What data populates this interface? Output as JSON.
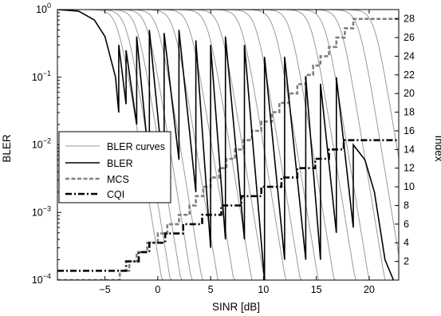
{
  "chart_data": {
    "type": "line",
    "xlabel": "SINR [dB]",
    "ylabel": "BLER",
    "y2label": "Index",
    "xlim": [
      -9.5,
      22.8
    ],
    "ylim": [
      0.0001,
      1
    ],
    "y2lim": [
      0,
      29
    ],
    "yscale": "log",
    "grid": false,
    "legend_position": "middle-left",
    "x_ticks": [
      -5,
      0,
      5,
      10,
      15,
      20
    ],
    "x_tick_labels": [
      "−5",
      "0",
      "5",
      "10",
      "15",
      "20"
    ],
    "y_ticks": [
      0.0001,
      0.001,
      0.01,
      0.1,
      1
    ],
    "y_tick_exponents": [
      "−4",
      "−3",
      "−2",
      "−1",
      "0"
    ],
    "y_tick_base": "10",
    "y2_ticks": [
      2,
      4,
      6,
      8,
      10,
      12,
      14,
      16,
      18,
      20,
      22,
      24,
      26,
      28
    ],
    "y2_tick_labels": [
      "2",
      "4",
      "6",
      "8",
      "10",
      "12",
      "14",
      "16",
      "18",
      "20",
      "22",
      "24",
      "26",
      "28"
    ],
    "legend": [
      {
        "label": "BLER curves",
        "style": "thin-gray",
        "color": "#9a9a9a"
      },
      {
        "label": "BLER",
        "style": "solid",
        "color": "#000000"
      },
      {
        "label": "MCS",
        "style": "dashed",
        "color": "#7f7f7f"
      },
      {
        "label": "CQI",
        "style": "dash-dot",
        "color": "#000000"
      }
    ],
    "bler_curve_midpoints": [
      -3.8,
      -3.0,
      -2.0,
      -1.0,
      0.0,
      1.5,
      3.0,
      4.7,
      5.9,
      7.9,
      9.3,
      11.0,
      12.5,
      14.5,
      15.8,
      17.3,
      19.0,
      20.5
    ],
    "bler_series": [
      {
        "x": -9.5,
        "y": 1.0
      },
      {
        "x": -7.5,
        "y": 0.95
      },
      {
        "x": -6.0,
        "y": 0.7
      },
      {
        "x": -5.0,
        "y": 0.4
      },
      {
        "x": -4.0,
        "y": 0.1
      },
      {
        "x": -3.7,
        "y": 0.03
      },
      {
        "x": -3.7,
        "y": 0.3
      },
      {
        "x": -3.0,
        "y": 0.04
      },
      {
        "x": -3.0,
        "y": 0.25
      },
      {
        "x": -2.0,
        "y": 0.02
      },
      {
        "x": -2.0,
        "y": 0.4
      },
      {
        "x": -0.8,
        "y": 0.005
      },
      {
        "x": -0.8,
        "y": 0.5
      },
      {
        "x": 0.6,
        "y": 0.003
      },
      {
        "x": 0.6,
        "y": 0.45
      },
      {
        "x": 2.0,
        "y": 0.006
      },
      {
        "x": 2.0,
        "y": 0.5
      },
      {
        "x": 3.6,
        "y": 0.002
      },
      {
        "x": 3.6,
        "y": 0.35
      },
      {
        "x": 5.0,
        "y": 0.0003
      },
      {
        "x": 5.0,
        "y": 0.3
      },
      {
        "x": 6.4,
        "y": 0.0004
      },
      {
        "x": 6.4,
        "y": 0.4
      },
      {
        "x": 8.2,
        "y": 0.0004
      },
      {
        "x": 8.2,
        "y": 0.3
      },
      {
        "x": 10.1,
        "y": 0.0001
      },
      {
        "x": 10.1,
        "y": 0.2
      },
      {
        "x": 12.0,
        "y": 0.0002
      },
      {
        "x": 12.0,
        "y": 0.2
      },
      {
        "x": 14.0,
        "y": 0.0002
      },
      {
        "x": 14.0,
        "y": 0.1
      },
      {
        "x": 15.4,
        "y": 0.0002
      },
      {
        "x": 15.4,
        "y": 0.08
      },
      {
        "x": 16.9,
        "y": 0.0005
      },
      {
        "x": 16.9,
        "y": 0.1
      },
      {
        "x": 18.5,
        "y": 0.0006
      },
      {
        "x": 18.5,
        "y": 0.01
      },
      {
        "x": 19.6,
        "y": 0.006
      },
      {
        "x": 20.5,
        "y": 0.002
      },
      {
        "x": 21.5,
        "y": 0.0002
      },
      {
        "x": 22.3,
        "y": 0.0001
      }
    ],
    "mcs_steps": [
      {
        "x": -9.5,
        "y": 0
      },
      {
        "x": -3.6,
        "y": 0
      },
      {
        "x": -3.6,
        "y": 1
      },
      {
        "x": -2.7,
        "y": 1
      },
      {
        "x": -2.7,
        "y": 2
      },
      {
        "x": -2.0,
        "y": 2
      },
      {
        "x": -2.0,
        "y": 3
      },
      {
        "x": -1.0,
        "y": 3
      },
      {
        "x": -1.0,
        "y": 4
      },
      {
        "x": 0.0,
        "y": 4
      },
      {
        "x": 0.0,
        "y": 5
      },
      {
        "x": 0.9,
        "y": 5
      },
      {
        "x": 0.9,
        "y": 6
      },
      {
        "x": 2.0,
        "y": 6
      },
      {
        "x": 2.0,
        "y": 7
      },
      {
        "x": 3.0,
        "y": 7
      },
      {
        "x": 3.0,
        "y": 8
      },
      {
        "x": 3.6,
        "y": 8
      },
      {
        "x": 3.6,
        "y": 9
      },
      {
        "x": 4.3,
        "y": 9
      },
      {
        "x": 4.3,
        "y": 10
      },
      {
        "x": 5.0,
        "y": 10
      },
      {
        "x": 5.0,
        "y": 11
      },
      {
        "x": 5.8,
        "y": 11
      },
      {
        "x": 5.8,
        "y": 12
      },
      {
        "x": 6.5,
        "y": 12
      },
      {
        "x": 6.5,
        "y": 13
      },
      {
        "x": 7.3,
        "y": 13
      },
      {
        "x": 7.3,
        "y": 14
      },
      {
        "x": 8.1,
        "y": 14
      },
      {
        "x": 8.1,
        "y": 15
      },
      {
        "x": 8.9,
        "y": 15
      },
      {
        "x": 8.9,
        "y": 16
      },
      {
        "x": 9.8,
        "y": 16
      },
      {
        "x": 9.8,
        "y": 17
      },
      {
        "x": 10.8,
        "y": 17
      },
      {
        "x": 10.8,
        "y": 18
      },
      {
        "x": 11.5,
        "y": 18
      },
      {
        "x": 11.5,
        "y": 19
      },
      {
        "x": 12.4,
        "y": 19
      },
      {
        "x": 12.4,
        "y": 20
      },
      {
        "x": 13.2,
        "y": 20
      },
      {
        "x": 13.2,
        "y": 21
      },
      {
        "x": 14.0,
        "y": 21
      },
      {
        "x": 14.0,
        "y": 22
      },
      {
        "x": 14.7,
        "y": 22
      },
      {
        "x": 14.7,
        "y": 23
      },
      {
        "x": 15.4,
        "y": 23
      },
      {
        "x": 15.4,
        "y": 24
      },
      {
        "x": 16.2,
        "y": 24
      },
      {
        "x": 16.2,
        "y": 25
      },
      {
        "x": 16.9,
        "y": 25
      },
      {
        "x": 16.9,
        "y": 26
      },
      {
        "x": 17.7,
        "y": 26
      },
      {
        "x": 17.7,
        "y": 27
      },
      {
        "x": 18.5,
        "y": 27
      },
      {
        "x": 18.5,
        "y": 28
      },
      {
        "x": 22.8,
        "y": 28
      }
    ],
    "cqi_steps": [
      {
        "x": -9.5,
        "y": 1
      },
      {
        "x": -3.0,
        "y": 1
      },
      {
        "x": -3.0,
        "y": 2
      },
      {
        "x": -1.8,
        "y": 2
      },
      {
        "x": -1.8,
        "y": 3
      },
      {
        "x": -0.8,
        "y": 3
      },
      {
        "x": -0.8,
        "y": 4
      },
      {
        "x": 0.7,
        "y": 4
      },
      {
        "x": 0.7,
        "y": 5
      },
      {
        "x": 2.4,
        "y": 5
      },
      {
        "x": 2.4,
        "y": 6
      },
      {
        "x": 4.2,
        "y": 6
      },
      {
        "x": 4.2,
        "y": 7
      },
      {
        "x": 6.0,
        "y": 7
      },
      {
        "x": 6.0,
        "y": 8
      },
      {
        "x": 7.9,
        "y": 8
      },
      {
        "x": 7.9,
        "y": 9
      },
      {
        "x": 9.8,
        "y": 9
      },
      {
        "x": 9.8,
        "y": 10
      },
      {
        "x": 11.7,
        "y": 10
      },
      {
        "x": 11.7,
        "y": 11
      },
      {
        "x": 13.2,
        "y": 11
      },
      {
        "x": 13.2,
        "y": 12
      },
      {
        "x": 14.9,
        "y": 12
      },
      {
        "x": 14.9,
        "y": 13
      },
      {
        "x": 16.2,
        "y": 13
      },
      {
        "x": 16.2,
        "y": 14
      },
      {
        "x": 17.6,
        "y": 14
      },
      {
        "x": 17.6,
        "y": 15
      },
      {
        "x": 22.8,
        "y": 15
      }
    ]
  }
}
